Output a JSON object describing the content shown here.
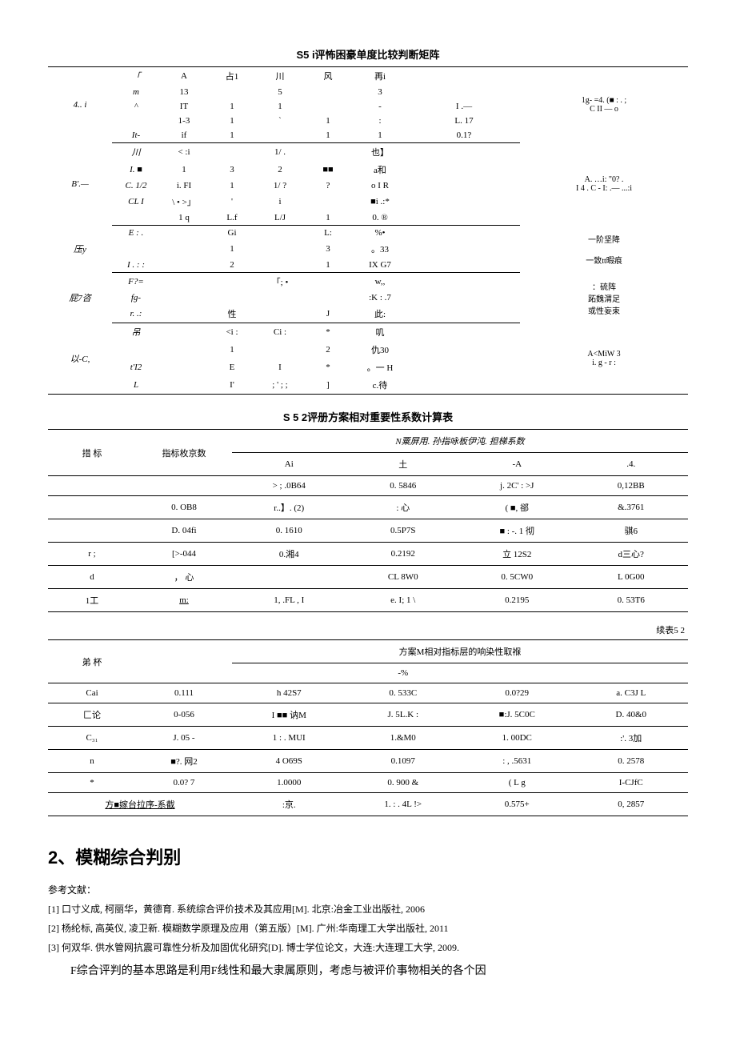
{
  "table1": {
    "title": "S5 i评怖困豪单度比较判断矩阵",
    "groups": [
      {
        "label": "4.. i",
        "rows": [
          [
            "「",
            "A",
            "占1",
            "川",
            "风",
            "再i",
            ""
          ],
          [
            "m",
            "13",
            "",
            "5",
            "",
            "3",
            ""
          ],
          [
            "^",
            "IT",
            "1",
            "1",
            "",
            "-",
            "I .—"
          ],
          [
            "",
            "1-3",
            "1",
            "`",
            "1",
            ":",
            "L. 17"
          ],
          [
            "It-",
            "if",
            "1",
            "",
            "1",
            "1",
            "0.1?"
          ]
        ],
        "note": "1g- =4. (■ : . ;\nC II — o"
      },
      {
        "label": "B'.—",
        "rows": [
          [
            "川",
            "< :i",
            "",
            "1/ .",
            "",
            "也】",
            ""
          ],
          [
            "I. ■",
            "1",
            "3",
            "2",
            "■■",
            "a和",
            ""
          ],
          [
            "C. 1/2",
            "i. FI",
            "1",
            "1/ ?",
            "?",
            "o I R",
            ""
          ],
          [
            "CL I",
            "\\ • >」",
            "'",
            "i",
            "",
            "■i .:*",
            ""
          ],
          [
            "",
            "1 q",
            "L.f",
            "L/J",
            "1",
            "0. ®",
            ""
          ]
        ],
        "note": "A. …i:      \"0? .\nI 4 . C - I:    .— ...:i"
      },
      {
        "label": "压y",
        "rows": [
          [
            "E : .",
            "",
            "Gi",
            "",
            "L:",
            "%•",
            ""
          ],
          [
            "",
            "",
            "1",
            "",
            "3",
            "。33",
            ""
          ],
          [
            "I . : :",
            "",
            "2",
            "",
            "1",
            "IX G7",
            ""
          ]
        ],
        "note": "一阶坚降\n\n一致tt暇痕"
      },
      {
        "label": "屁7咨",
        "rows": [
          [
            "F?=",
            "",
            "",
            "「; •",
            "",
            "w,,",
            ""
          ],
          [
            "fg-",
            "",
            "",
            "",
            "",
            ":K  :  .7",
            ""
          ],
          [
            "r. .:",
            "",
            "性",
            "",
            "J",
            "此:",
            ""
          ]
        ],
        "note": "：硫阵\n跖魏渭足\n或性妄束"
      },
      {
        "label": "以-C,",
        "rows": [
          [
            "吊",
            "",
            "<i :",
            "Ci :",
            "*",
            "叽",
            ""
          ],
          [
            "",
            "",
            "1",
            "",
            "2",
            "仇30",
            ""
          ],
          [
            "t'I2",
            "",
            "E",
            "I",
            "*",
            "。一  H",
            ""
          ],
          [
            "L",
            "",
            "I'",
            "; ' ; ;",
            "]",
            "c.待",
            ""
          ]
        ],
        "note": "A<MiW 3\ni. g - r :"
      }
    ]
  },
  "table2": {
    "title": "S 5 2评册方案相对重要性系数计算表",
    "col1": "措  标",
    "col2": "指标枚京数",
    "span_header": "N粟屏用. 孙指咏板伊沌. 担梯系数",
    "subcols": [
      "Ai",
      "土",
      "-A",
      ".4."
    ],
    "rows": [
      [
        "",
        "",
        "> ; .0B64",
        "0. 5846",
        "j. 2C' : >J",
        "0,12BB"
      ],
      [
        "",
        "0. OB8",
        "r..】. (2)",
        ": 心",
        "( ■,   郤",
        "&.3761"
      ],
      [
        "",
        "D. 04fi",
        "0. 1610",
        "0.5P7S",
        "■ : -. 1 彻",
        "骐6"
      ],
      [
        "r  ;",
        "[>-044",
        "0.湘4",
        "0.2192",
        "立  12S2",
        "d三心?"
      ],
      [
        "d",
        "，  心",
        "",
        "CL 8W0",
        "0. 5CW0",
        "L 0G00"
      ],
      [
        "1工",
        "m:",
        "1, .FL , I",
        "e. I; 1 \\",
        "0.2195",
        "0. 53T6"
      ]
    ]
  },
  "cont_label": "续表5 2",
  "table3": {
    "col1": "弟      杯",
    "span_header": "方案M相对指标层的响染性取褓",
    "subcols": [
      "",
      "-%",
      "",
      ""
    ],
    "rows": [
      [
        "Cai",
        "0.111",
        "h 42S7",
        "0. 533C",
        "0.0?29",
        "a. C3J L"
      ],
      [
        "匚论",
        "0-056",
        "I ■■ 讷M",
        "J. 5L.K :",
        "■:J. 5C0C",
        "D. 40&0"
      ],
      [
        "C₃₁",
        "J. 05 -",
        "1 : . MUI",
        "1.&M0",
        "1. 00DC",
        ":'. 3加"
      ],
      [
        "n",
        "■?. 网2",
        "4 O69S",
        "0.1097",
        ": ,  .5631",
        "0. 2578"
      ],
      [
        "*",
        "0.0? 7",
        "1.0000",
        "0. 900 &",
        "( L g",
        "I-CJfC"
      ]
    ],
    "footer": [
      "方■嫁台拉序-系截",
      "",
      ":京.",
      "1. : . 4L !>",
      "0.575+",
      "0, 2857"
    ]
  },
  "section_title": "2、模糊综合判别",
  "ref_label": "参考文献：",
  "refs": [
    "[1] 口寸义成, 柯丽华，黄德育. 系统综合评价技术及其应用[M]. 北京:冶金工业出版社, 2006",
    "[2] 杨纶标, 高英仪, 凌卫新. 模糊数学原理及应用（第五版）[M]. 广州:华南理工大学出版社, 2011",
    "[3] 何双华. 供水管网抗震可靠性分析及加固优化研究[D]. 博士学位论文，大连:大连理工大学, 2009."
  ],
  "paragraph": "F综合评判的基本思路是利用F线性和最大隶属原则，考虑与被评价事物相关的各个因"
}
